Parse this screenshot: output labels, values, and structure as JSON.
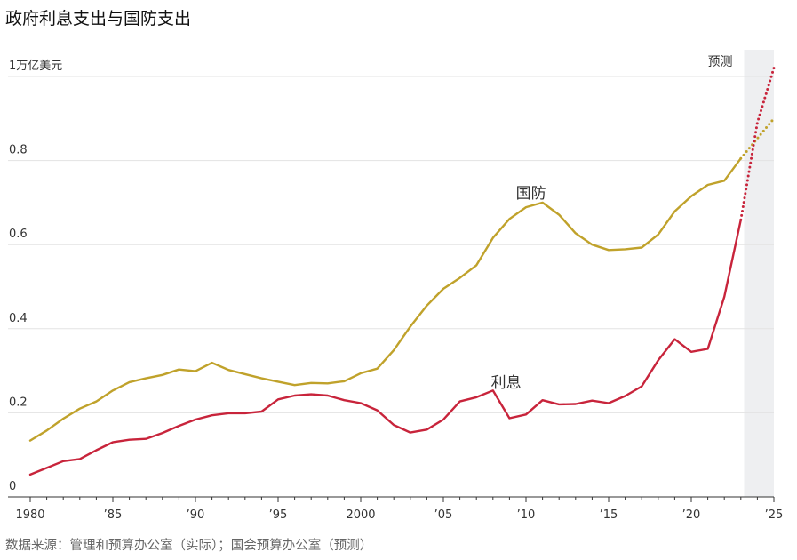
{
  "header": {
    "title": "政府利息支出与国防支出"
  },
  "footer": {
    "source": "数据来源：管理和预算办公室（实际）；国会预算办公室（预测）"
  },
  "chart_data": {
    "type": "line",
    "title": "政府利息支出与国防支出",
    "xlabel": "",
    "ylabel": "",
    "xlim": [
      1980,
      2025
    ],
    "ylim": [
      0,
      1.0
    ],
    "grid": true,
    "projection_label": "预测",
    "projection_start": 2023.2,
    "x_ticks": [
      {
        "value": 1980,
        "label": "1980"
      },
      {
        "value": 1985,
        "label": "’85"
      },
      {
        "value": 1990,
        "label": "’90"
      },
      {
        "value": 1995,
        "label": "’95"
      },
      {
        "value": 2000,
        "label": "2000"
      },
      {
        "value": 2005,
        "label": "’05"
      },
      {
        "value": 2010,
        "label": "’10"
      },
      {
        "value": 2015,
        "label": "’15"
      },
      {
        "value": 2020,
        "label": "’20"
      },
      {
        "value": 2025,
        "label": "’25"
      }
    ],
    "y_ticks": [
      {
        "value": 0,
        "label": "0"
      },
      {
        "value": 0.2,
        "label": "0.2"
      },
      {
        "value": 0.4,
        "label": "0.4"
      },
      {
        "value": 0.6,
        "label": "0.6"
      },
      {
        "value": 0.8,
        "label": "0.8"
      },
      {
        "value": 1.0,
        "label": "1万亿美元"
      }
    ],
    "series": [
      {
        "name": "国防",
        "color": "#c0a22b",
        "label_at": [
          2010.3,
          0.71
        ],
        "x": [
          1980,
          1981,
          1982,
          1983,
          1984,
          1985,
          1986,
          1987,
          1988,
          1989,
          1990,
          1991,
          1992,
          1993,
          1994,
          1995,
          1996,
          1997,
          1998,
          1999,
          2000,
          2001,
          2002,
          2003,
          2004,
          2005,
          2006,
          2007,
          2008,
          2009,
          2010,
          2011,
          2012,
          2013,
          2014,
          2015,
          2016,
          2017,
          2018,
          2019,
          2020,
          2021,
          2022,
          2023
        ],
        "values": [
          0.134,
          0.158,
          0.186,
          0.21,
          0.227,
          0.253,
          0.273,
          0.282,
          0.29,
          0.303,
          0.299,
          0.319,
          0.302,
          0.292,
          0.282,
          0.274,
          0.266,
          0.271,
          0.27,
          0.275,
          0.294,
          0.305,
          0.349,
          0.405,
          0.455,
          0.495,
          0.521,
          0.551,
          0.616,
          0.661,
          0.689,
          0.7,
          0.671,
          0.627,
          0.6,
          0.587,
          0.589,
          0.593,
          0.624,
          0.679,
          0.715,
          0.742,
          0.752,
          0.805
        ],
        "projection_x": [
          2023,
          2025
        ],
        "projection_values": [
          0.805,
          0.9
        ]
      },
      {
        "name": "利息",
        "color": "#c8243b",
        "label_at": [
          2008.8,
          0.26
        ],
        "x": [
          1980,
          1981,
          1982,
          1983,
          1984,
          1985,
          1986,
          1987,
          1988,
          1989,
          1990,
          1991,
          1992,
          1993,
          1994,
          1995,
          1996,
          1997,
          1998,
          1999,
          2000,
          2001,
          2002,
          2003,
          2004,
          2005,
          2006,
          2007,
          2008,
          2009,
          2010,
          2011,
          2012,
          2013,
          2014,
          2015,
          2016,
          2017,
          2018,
          2019,
          2020,
          2021,
          2022,
          2023
        ],
        "values": [
          0.053,
          0.069,
          0.085,
          0.09,
          0.111,
          0.13,
          0.136,
          0.138,
          0.152,
          0.169,
          0.184,
          0.194,
          0.199,
          0.199,
          0.203,
          0.232,
          0.241,
          0.244,
          0.241,
          0.23,
          0.223,
          0.206,
          0.171,
          0.153,
          0.16,
          0.184,
          0.227,
          0.237,
          0.253,
          0.187,
          0.196,
          0.23,
          0.22,
          0.221,
          0.229,
          0.223,
          0.24,
          0.263,
          0.325,
          0.375,
          0.345,
          0.352,
          0.476,
          0.659
        ],
        "projection_x": [
          2023,
          2024,
          2025
        ],
        "projection_values": [
          0.659,
          0.89,
          1.02
        ]
      }
    ]
  }
}
